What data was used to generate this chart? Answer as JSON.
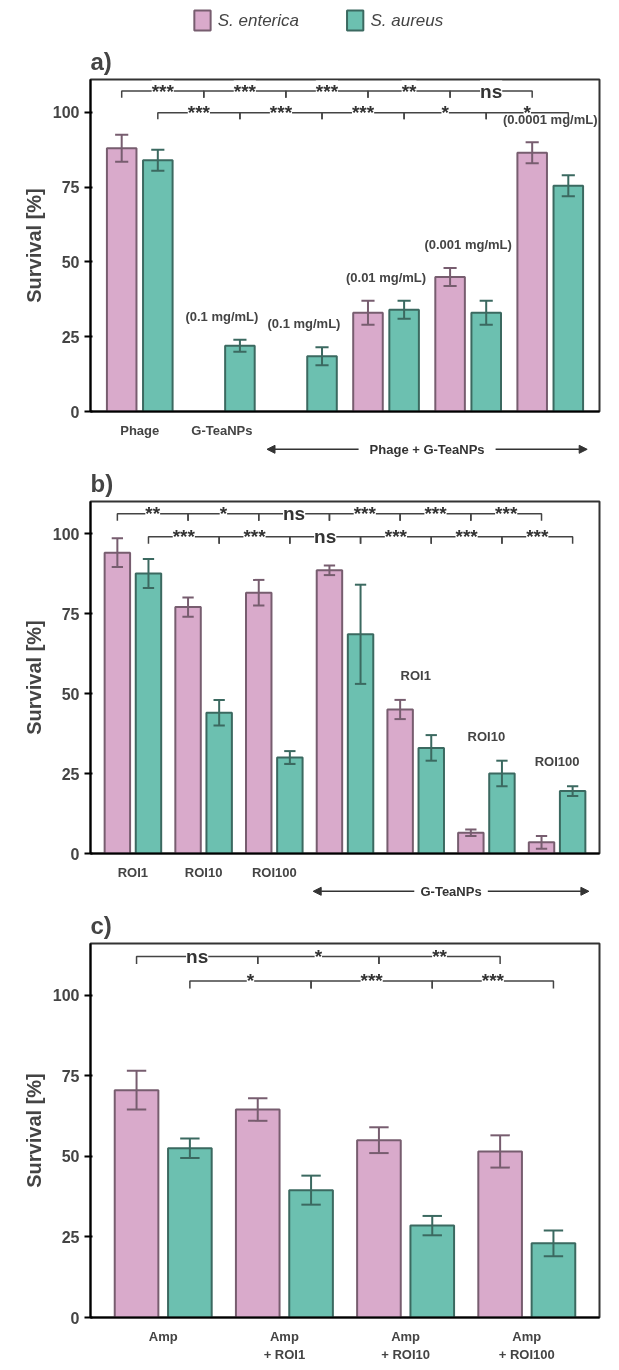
{
  "chart_data": [
    {
      "type": "bar",
      "title": "a)",
      "ylabel": "Survival [%]",
      "categories": [
        "Phage",
        "G-TeaNPs",
        null,
        null,
        null,
        null
      ],
      "series": [
        {
          "name": "S. enterica",
          "color": "#d9aacb",
          "values": [
            88,
            null,
            null,
            33,
            45,
            86.5
          ],
          "errors": [
            4.5,
            null,
            null,
            4,
            3,
            3.5
          ]
        },
        {
          "name": "S. aureus",
          "color": "#6cc0b0",
          "values": [
            84,
            22,
            18.5,
            34,
            33,
            75.5
          ],
          "errors": [
            3.5,
            2,
            3,
            3,
            4,
            3.5
          ]
        }
      ],
      "ylim": [
        0,
        111
      ],
      "yticks": [
        0,
        25,
        50,
        75,
        100
      ],
      "grid": false,
      "legend": "top",
      "annotations": [
        "***",
        "***",
        "***",
        "**",
        "ns",
        "***",
        "***",
        "***",
        "*",
        "*",
        "(0.1 mg/mL)",
        "(0.1 mg/mL)",
        "(0.01 mg/mL)",
        "(0.001 mg/mL)",
        "(0.0001 mg/mL)",
        "Phage + G-TeaNPs"
      ]
    },
    {
      "type": "bar",
      "title": "b)",
      "ylabel": "Survival [%]",
      "categories": [
        "ROI1",
        "ROI10",
        "ROI100",
        null,
        null,
        null,
        null
      ],
      "series": [
        {
          "color": "#d9aacb",
          "values": [
            94,
            77,
            81.5,
            88.5,
            45,
            6.5,
            3.5
          ],
          "errors": [
            4.5,
            3,
            4,
            1.5,
            3,
            1,
            2
          ]
        },
        {
          "color": "#6cc0b0",
          "values": [
            87.5,
            44,
            30,
            68.5,
            33,
            25,
            19.5
          ],
          "errors": [
            4.5,
            4,
            2,
            15.5,
            4,
            4,
            1.5
          ]
        }
      ],
      "ylim": [
        0,
        110
      ],
      "yticks": [
        0,
        25,
        50,
        75,
        100
      ],
      "grid": false,
      "annotations": [
        "**",
        "*",
        "ns",
        "***",
        "***",
        "***",
        "***",
        "***",
        "ns",
        "***",
        "***",
        "***",
        "ROI1",
        "ROI10",
        "ROI100",
        "G-TeaNPs"
      ]
    },
    {
      "type": "bar",
      "title": "c)",
      "ylabel": "Survival [%]",
      "categories": [
        "Amp",
        "Amp\n+ ROI1",
        "Amp\n+ ROI10",
        "Amp\n+ ROI100"
      ],
      "series": [
        {
          "color": "#d9aacb",
          "values": [
            70.5,
            64.5,
            55,
            51.5
          ],
          "errors": [
            6,
            3.5,
            4,
            5
          ]
        },
        {
          "color": "#6cc0b0",
          "values": [
            52.5,
            39.5,
            28.5,
            23
          ],
          "errors": [
            3,
            4.5,
            3,
            4
          ]
        }
      ],
      "ylim": [
        0,
        116
      ],
      "yticks": [
        0,
        25,
        50,
        75,
        100
      ],
      "grid": false,
      "annotations": [
        "ns",
        "*",
        "**",
        "*",
        "***",
        "***"
      ]
    }
  ]
}
